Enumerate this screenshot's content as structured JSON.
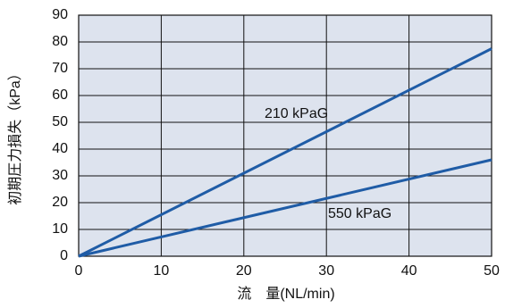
{
  "chart_data": {
    "type": "line",
    "x_label": "流　量(NL/min)",
    "y_label": "初期圧力損失（kPa）",
    "x": [
      0,
      50
    ],
    "series": [
      {
        "name": "210 kPaG",
        "color": "#1f5ca6",
        "values": [
          0,
          77.5
        ]
      },
      {
        "name": "550 kPaG",
        "color": "#1f5ca6",
        "values": [
          0,
          36
        ]
      }
    ],
    "xlim": [
      0,
      50
    ],
    "xticks": [
      0,
      10,
      20,
      30,
      40,
      50
    ],
    "ylim": [
      0,
      90
    ],
    "yticks": [
      0,
      10,
      20,
      30,
      40,
      50,
      60,
      70,
      80,
      90
    ],
    "grid": true,
    "background": "#dde3ee"
  }
}
